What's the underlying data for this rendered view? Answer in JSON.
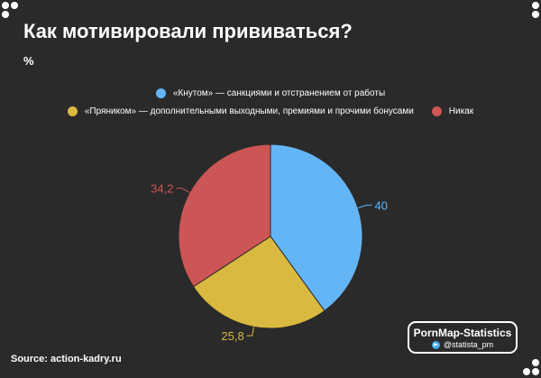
{
  "title": "Как мотивировали прививаться?",
  "subtitle": "%",
  "chart_data": {
    "type": "pie",
    "title": "Как мотивировали прививаться?",
    "unit": "%",
    "legend_placement": "top-center",
    "categories": [
      "«Кнутом» — санкциями и отстранением от работы",
      "«Пряником» — дополнительными выходными, премиями и прочими бонусами",
      "Никак"
    ],
    "values": [
      40,
      25.8,
      34.2
    ],
    "labels": [
      "40",
      "25,8",
      "34,2"
    ],
    "colors": [
      "#64b5f6",
      "#d9b93f",
      "#cc5555"
    ],
    "label_colors": [
      "#64b5f6",
      "#d9b93f",
      "#cc5555"
    ]
  },
  "footer": {
    "source": "Source: action-kadry.ru",
    "brand_name": "PornMap-Statistics",
    "brand_handle": "@statista_pm",
    "brand_icon": "telegram-icon"
  }
}
